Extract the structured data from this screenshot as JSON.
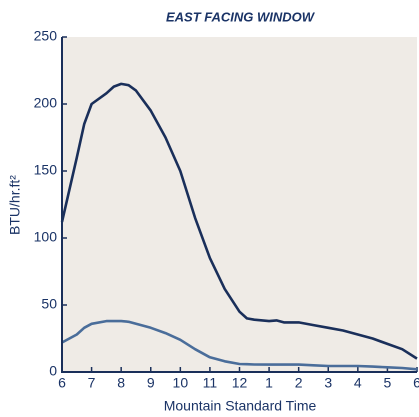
{
  "chart_data": {
    "type": "line",
    "title": "EAST FACING WINDOW",
    "x_label": "Mountain Standard Time",
    "y_label": "BTU/hr.ft²",
    "x": [
      6,
      6.5,
      6.75,
      7,
      7.5,
      7.75,
      8,
      8.25,
      8.5,
      9,
      9.5,
      10,
      10.5,
      11,
      11.5,
      12,
      12.25,
      12.5,
      13,
      13.25,
      13.5,
      14,
      14.5,
      15,
      15.5,
      16,
      16.5,
      17,
      17.5,
      18
    ],
    "series": [
      {
        "color": "#1a2f5a",
        "values": [
          112,
          160,
          185,
          200,
          208,
          213,
          215,
          214,
          210,
          195,
          175,
          150,
          115,
          85,
          62,
          45,
          40,
          39,
          38,
          38.5,
          37,
          37,
          35,
          33,
          31,
          28,
          25,
          21,
          17,
          10
        ]
      },
      {
        "color": "#4a6d9a",
        "values": [
          22,
          28,
          33,
          36,
          38,
          38,
          38,
          37.5,
          36,
          33,
          29,
          24,
          17,
          11,
          8,
          6,
          5.8,
          5.6,
          5.5,
          5.5,
          5.5,
          5.5,
          5,
          4.5,
          4.5,
          4.5,
          4,
          3.5,
          3,
          2
        ]
      }
    ],
    "xlim": [
      6,
      18
    ],
    "xticks": [
      6,
      7,
      8,
      9,
      10,
      11,
      12,
      {
        "value": 13,
        "label": "1"
      },
      {
        "value": 14,
        "label": "2"
      },
      {
        "value": 15,
        "label": "3"
      },
      {
        "value": 16,
        "label": "4"
      },
      {
        "value": 17,
        "label": "5"
      },
      {
        "value": 18,
        "label": "6"
      }
    ],
    "ylim": [
      0,
      250
    ],
    "yticks": [
      0,
      50,
      100,
      150,
      200,
      250
    ],
    "background": "#efebe6",
    "axis_color": "#1a2f5a"
  }
}
